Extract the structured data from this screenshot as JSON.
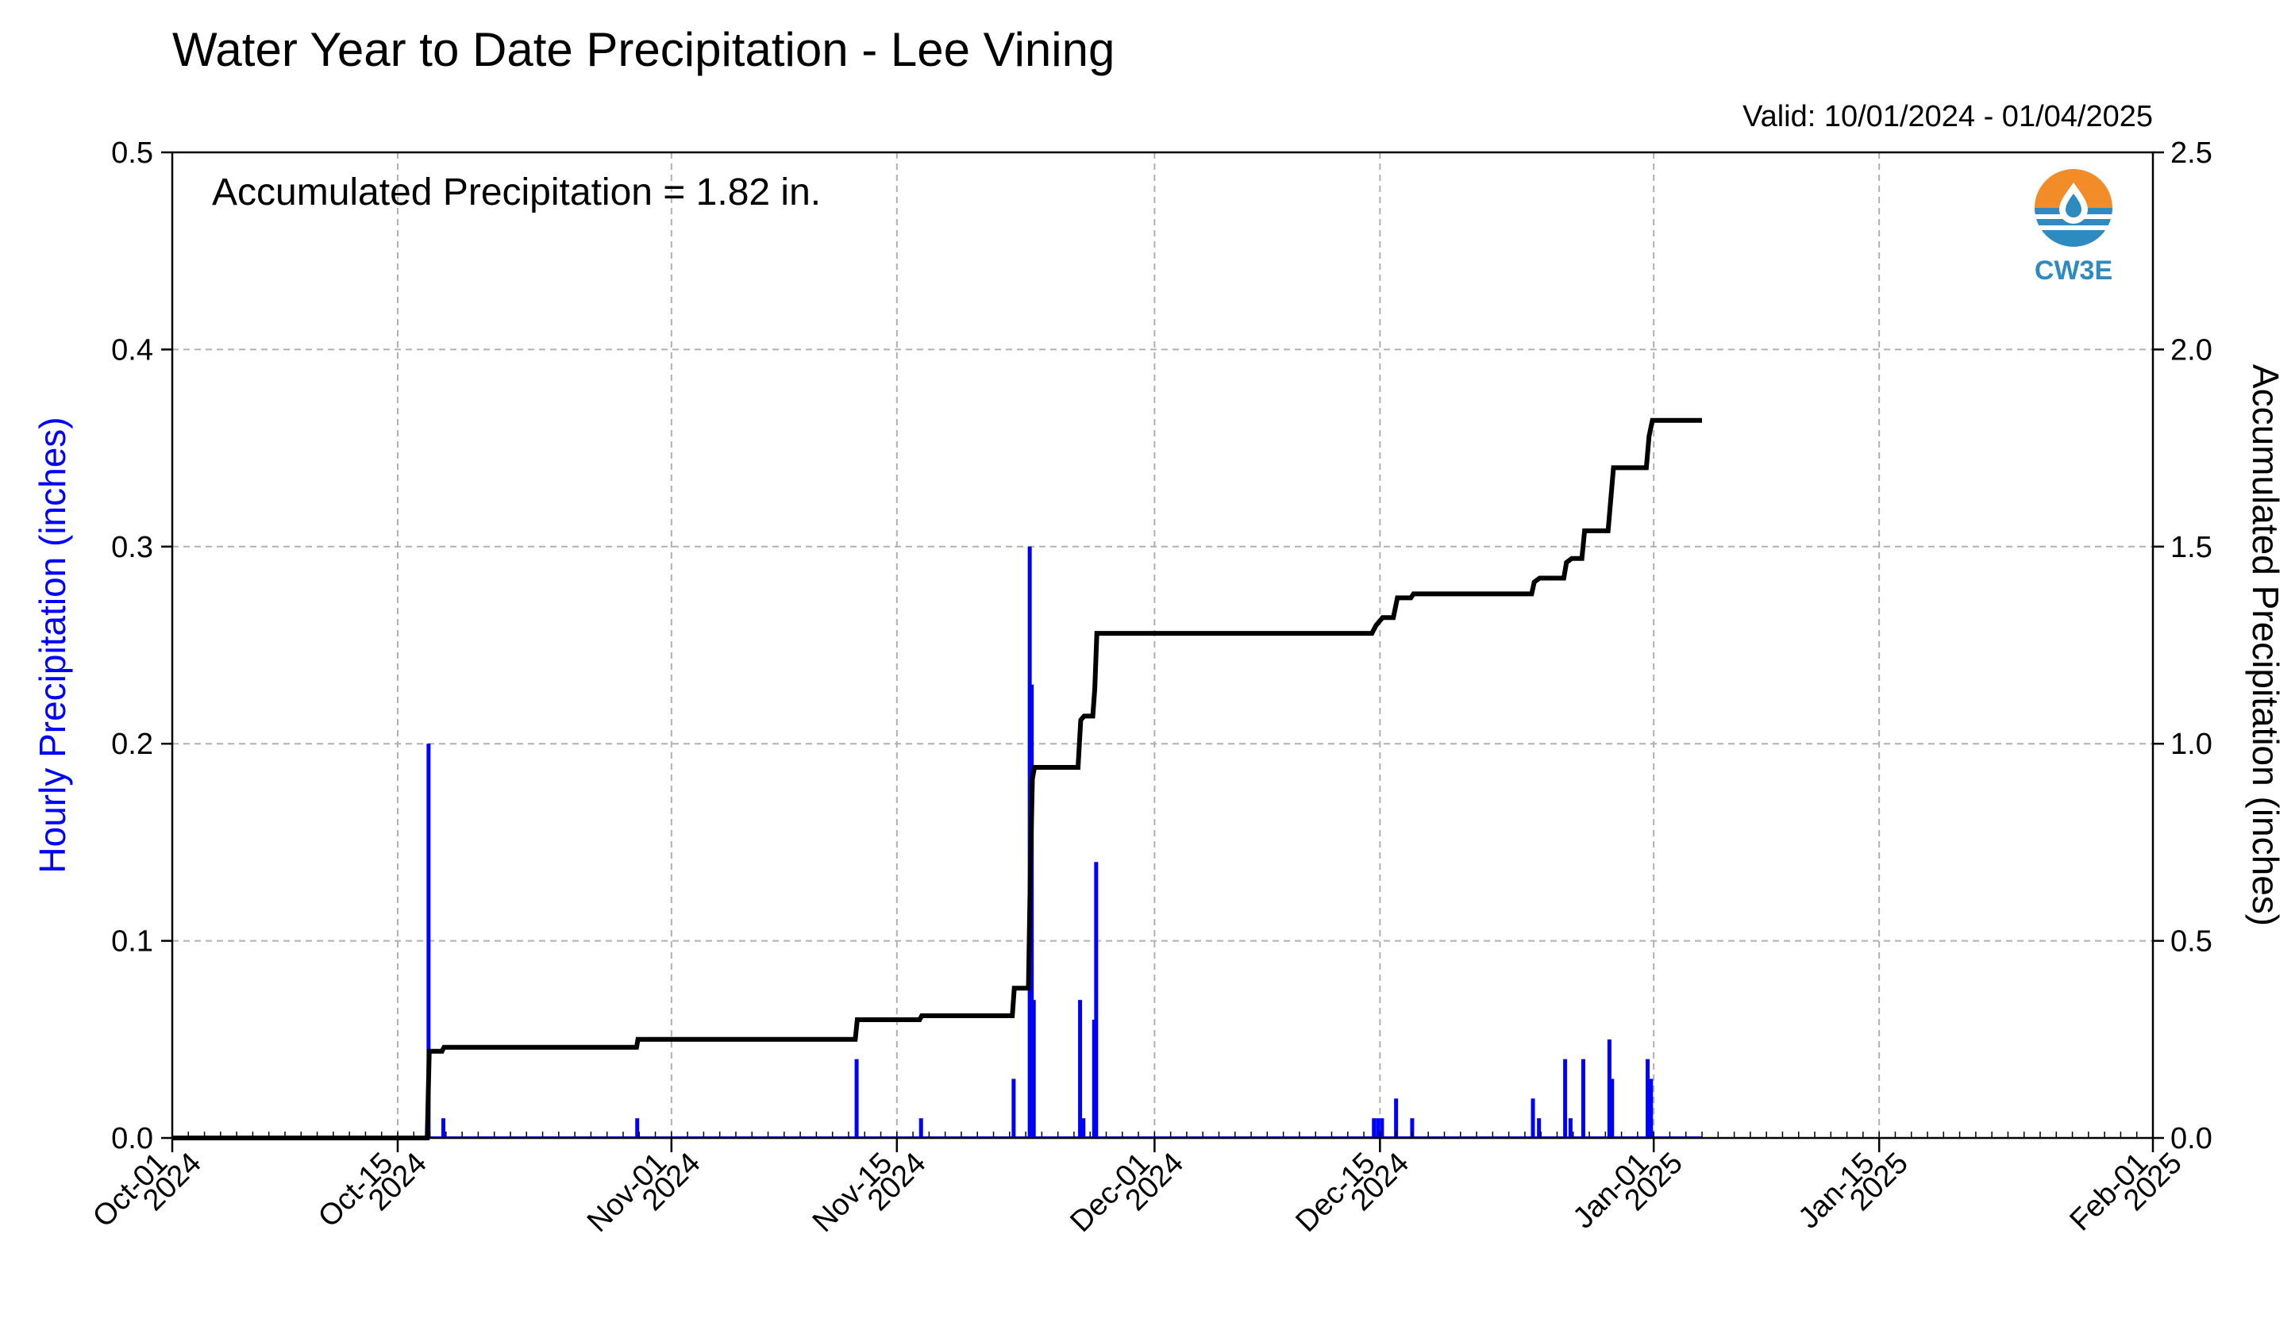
{
  "chart_data": {
    "type": "bar",
    "title": "Water Year to Date Precipitation - Lee Vining",
    "valid_label": "Valid: 10/01/2024 - 01/04/2025",
    "annotation": "Accumulated Precipitation = 1.82 in.",
    "logo_text": "CW3E",
    "ylabel_left": "Hourly Precipitation (inches)",
    "ylabel_right": "Accumulated Precipitation (inches)",
    "xlim": [
      "2024-10-01",
      "2025-02-01"
    ],
    "ylim_left": [
      0.0,
      0.5
    ],
    "ylim_right": [
      0.0,
      2.5
    ],
    "grid": true,
    "x_ticks": [
      {
        "date": "2024-10-01",
        "line1": "Oct-01",
        "line2": "2024"
      },
      {
        "date": "2024-10-15",
        "line1": "Oct-15",
        "line2": "2024"
      },
      {
        "date": "2024-11-01",
        "line1": "Nov-01",
        "line2": "2024"
      },
      {
        "date": "2024-11-15",
        "line1": "Nov-15",
        "line2": "2024"
      },
      {
        "date": "2024-12-01",
        "line1": "Dec-01",
        "line2": "2024"
      },
      {
        "date": "2024-12-15",
        "line1": "Dec-15",
        "line2": "2024"
      },
      {
        "date": "2025-01-01",
        "line1": "Jan-01",
        "line2": "2025"
      },
      {
        "date": "2025-01-15",
        "line1": "Jan-15",
        "line2": "2025"
      },
      {
        "date": "2025-02-01",
        "line1": "Feb-01",
        "line2": "2025"
      }
    ],
    "y_ticks_left": [
      "0.0",
      "0.1",
      "0.2",
      "0.3",
      "0.4",
      "0.5"
    ],
    "y_ticks_right": [
      "0.0",
      "0.5",
      "1.0",
      "1.5",
      "2.0",
      "2.5"
    ],
    "series": [
      {
        "axis": "left",
        "type": "bar",
        "color": "#0000ff",
        "points": [
          {
            "x": "2024-10-16T22:00",
            "y": 0.2
          },
          {
            "x": "2024-10-17T20:00",
            "y": 0.01
          },
          {
            "x": "2024-10-29T21:00",
            "y": 0.01
          },
          {
            "x": "2024-11-12T12:00",
            "y": 0.04
          },
          {
            "x": "2024-11-16T12:00",
            "y": 0.01
          },
          {
            "x": "2024-11-22T06:00",
            "y": 0.03
          },
          {
            "x": "2024-11-23T06:00",
            "y": 0.3
          },
          {
            "x": "2024-11-23T09:00",
            "y": 0.23
          },
          {
            "x": "2024-11-23T12:00",
            "y": 0.07
          },
          {
            "x": "2024-11-26T09:00",
            "y": 0.07
          },
          {
            "x": "2024-11-26T14:00",
            "y": 0.01
          },
          {
            "x": "2024-11-27T09:00",
            "y": 0.14
          },
          {
            "x": "2024-11-27T06:00",
            "y": 0.06
          },
          {
            "x": "2024-12-14T15:00",
            "y": 0.01
          },
          {
            "x": "2024-12-14T21:00",
            "y": 0.01
          },
          {
            "x": "2024-12-15T03:00",
            "y": 0.01
          },
          {
            "x": "2024-12-16T00:00",
            "y": 0.02
          },
          {
            "x": "2024-12-17T00:00",
            "y": 0.01
          },
          {
            "x": "2024-12-24T12:00",
            "y": 0.02
          },
          {
            "x": "2024-12-24T21:00",
            "y": 0.01
          },
          {
            "x": "2024-12-26T12:00",
            "y": 0.04
          },
          {
            "x": "2024-12-26T20:00",
            "y": 0.01
          },
          {
            "x": "2024-12-27T15:00",
            "y": 0.04
          },
          {
            "x": "2024-12-29T06:00",
            "y": 0.05
          },
          {
            "x": "2024-12-29T10:00",
            "y": 0.03
          },
          {
            "x": "2024-12-31T15:00",
            "y": 0.04
          },
          {
            "x": "2024-12-31T20:00",
            "y": 0.03
          }
        ]
      },
      {
        "axis": "right",
        "type": "step-line",
        "color": "#000000",
        "points": [
          {
            "x": "2024-10-01T00:00",
            "y": 0.0
          },
          {
            "x": "2024-10-16T20:00",
            "y": 0.0
          },
          {
            "x": "2024-10-16T23:00",
            "y": 0.22
          },
          {
            "x": "2024-10-17T18:00",
            "y": 0.22
          },
          {
            "x": "2024-10-17T21:00",
            "y": 0.23
          },
          {
            "x": "2024-10-29T20:00",
            "y": 0.23
          },
          {
            "x": "2024-10-29T22:00",
            "y": 0.25
          },
          {
            "x": "2024-11-12T10:00",
            "y": 0.25
          },
          {
            "x": "2024-11-12T13:00",
            "y": 0.3
          },
          {
            "x": "2024-11-16T10:00",
            "y": 0.3
          },
          {
            "x": "2024-11-16T13:00",
            "y": 0.31
          },
          {
            "x": "2024-11-22T04:00",
            "y": 0.31
          },
          {
            "x": "2024-11-22T07:00",
            "y": 0.38
          },
          {
            "x": "2024-11-23T04:00",
            "y": 0.38
          },
          {
            "x": "2024-11-23T07:00",
            "y": 0.68
          },
          {
            "x": "2024-11-23T10:00",
            "y": 0.91
          },
          {
            "x": "2024-11-23T13:00",
            "y": 0.94
          },
          {
            "x": "2024-11-26T06:00",
            "y": 0.94
          },
          {
            "x": "2024-11-26T10:00",
            "y": 1.06
          },
          {
            "x": "2024-11-26T15:00",
            "y": 1.07
          },
          {
            "x": "2024-11-27T04:00",
            "y": 1.07
          },
          {
            "x": "2024-11-27T07:00",
            "y": 1.14
          },
          {
            "x": "2024-11-27T10:00",
            "y": 1.28
          },
          {
            "x": "2024-12-14T12:00",
            "y": 1.28
          },
          {
            "x": "2024-12-14T18:00",
            "y": 1.3
          },
          {
            "x": "2024-12-15T04:00",
            "y": 1.32
          },
          {
            "x": "2024-12-15T20:00",
            "y": 1.32
          },
          {
            "x": "2024-12-16T02:00",
            "y": 1.37
          },
          {
            "x": "2024-12-16T22:00",
            "y": 1.37
          },
          {
            "x": "2024-12-17T02:00",
            "y": 1.38
          },
          {
            "x": "2024-12-24T10:00",
            "y": 1.38
          },
          {
            "x": "2024-12-24T14:00",
            "y": 1.41
          },
          {
            "x": "2024-12-24T22:00",
            "y": 1.42
          },
          {
            "x": "2024-12-26T10:00",
            "y": 1.42
          },
          {
            "x": "2024-12-26T14:00",
            "y": 1.46
          },
          {
            "x": "2024-12-26T22:00",
            "y": 1.47
          },
          {
            "x": "2024-12-27T13:00",
            "y": 1.47
          },
          {
            "x": "2024-12-27T17:00",
            "y": 1.54
          },
          {
            "x": "2024-12-29T04:00",
            "y": 1.54
          },
          {
            "x": "2024-12-29T08:00",
            "y": 1.62
          },
          {
            "x": "2024-12-29T12:00",
            "y": 1.7
          },
          {
            "x": "2024-12-31T13:00",
            "y": 1.7
          },
          {
            "x": "2024-12-31T17:00",
            "y": 1.78
          },
          {
            "x": "2024-12-31T22:00",
            "y": 1.82
          },
          {
            "x": "2025-01-04T00:00",
            "y": 1.82
          }
        ]
      }
    ]
  }
}
